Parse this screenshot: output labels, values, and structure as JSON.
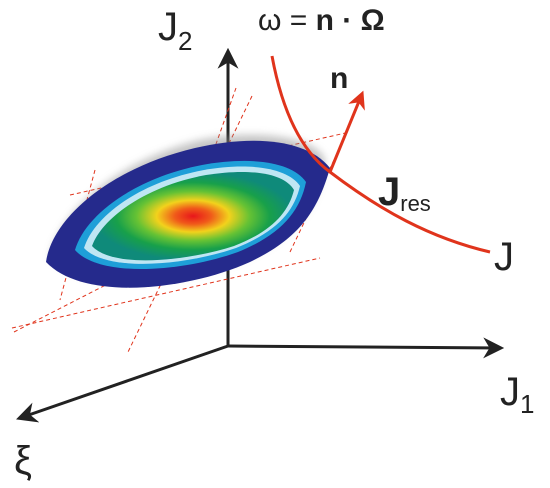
{
  "labels": {
    "axis_j2": "J",
    "axis_j2_sub": "2",
    "axis_j1": "J",
    "axis_j1_sub": "1",
    "axis_xi": "ξ",
    "eq_omega": "ω =",
    "eq_n": "n",
    "eq_dot": "·",
    "eq_omega_cap": "Ω",
    "vector_n": "n",
    "j_res": "J",
    "j_res_sub": "res",
    "j_curve": "J"
  },
  "colors": {
    "axis": "#222222",
    "resonance": "#e0341c",
    "outer_band": "#252a8c",
    "guides": "#e0341c"
  }
}
